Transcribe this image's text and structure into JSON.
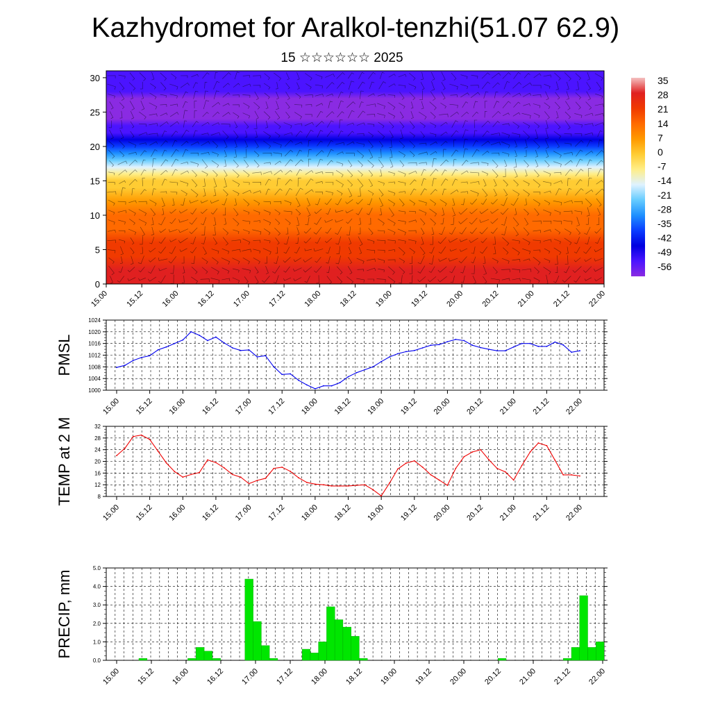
{
  "header": {
    "title": "Kazhydromet for Aralkol-tenzhi(51.07 62.9)",
    "subtitle": "15 ☆☆☆☆☆☆ 2025"
  },
  "colors": {
    "pmsl_line": "#0000ee",
    "temp_line": "#ee0000",
    "precip_bar": "#00e600",
    "precip_bar_edge": "#00a000"
  },
  "chart_data": [
    {
      "type": "heatmap",
      "title": "Kazhydromet for Aralkol-tenzhi(51.07 62.9)",
      "subtitle": "15 ☆☆☆☆☆☆ 2025",
      "x_ticks": [
        "15.00",
        "15.12",
        "16.00",
        "16.12",
        "17.00",
        "17.12",
        "18.00",
        "18.12",
        "19.00",
        "19.12",
        "20.00",
        "20.12",
        "21.00",
        "21.12",
        "22.00"
      ],
      "y_ticks": [
        0,
        5,
        10,
        15,
        20,
        25,
        30
      ],
      "ylim": [
        0,
        31
      ],
      "colorbar_labels": [
        "35",
        "28",
        "21",
        "14",
        "7",
        "0",
        "-7",
        "-14",
        "-21",
        "-28",
        "-35",
        "-42",
        "-49",
        "-56"
      ],
      "colorbar_stops": [
        "#f4c0c0",
        "#e02020",
        "#f03a00",
        "#ff6a00",
        "#ff9900",
        "#ffcc33",
        "#ffee88",
        "#dff2ff",
        "#66ccff",
        "#1e90ff",
        "#0a3dff",
        "#0000e0",
        "#4b14ff",
        "#8a2be2"
      ],
      "overlay": "wind barbs",
      "profile_heights_km": [
        0,
        2,
        4,
        6,
        8,
        10,
        12,
        14,
        15,
        16,
        17,
        18,
        19,
        20,
        21,
        22,
        23,
        24,
        25,
        26,
        27,
        28,
        29,
        30,
        31
      ],
      "profile_temps_c": [
        30,
        28,
        26,
        22,
        18,
        14,
        10,
        5,
        2,
        -4,
        -10,
        -18,
        -24,
        -32,
        -38,
        -44,
        -48,
        -52,
        -55,
        -54,
        -50,
        -47,
        -46,
        -45,
        -44
      ]
    },
    {
      "type": "line",
      "ylabel": "PMSL",
      "y_ticks": [
        1000,
        1004,
        1008,
        1012,
        1016,
        1020,
        1024
      ],
      "ylim": [
        1000,
        1024
      ],
      "x_ticks": [
        "15.00",
        "15.12",
        "16.00",
        "16.12",
        "17.00",
        "17.12",
        "18.00",
        "18.12",
        "19.00",
        "19.12",
        "20.00",
        "20.12",
        "21.00",
        "21.12",
        "22.00"
      ],
      "x_step_hours": 3,
      "series": [
        {
          "values": [
            1007.8,
            1008.5,
            1010.2,
            1011.2,
            1011.8,
            1013.8,
            1014.8,
            1016.0,
            1017.2,
            1020.0,
            1018.8,
            1017.0,
            1018.2,
            1016.2,
            1014.5,
            1013.6,
            1013.8,
            1011.4,
            1011.8,
            1008.0,
            1005.4,
            1005.6,
            1003.4,
            1001.8,
            1000.5,
            1001.5,
            1001.5,
            1002.6,
            1004.6,
            1006.0,
            1007.0,
            1008.0,
            1009.8,
            1011.4,
            1012.5,
            1013.2,
            1013.6,
            1014.5,
            1015.4,
            1015.6,
            1016.6,
            1017.4,
            1017.0,
            1015.4,
            1014.6,
            1014.0,
            1013.5,
            1013.5,
            1014.8,
            1016.0,
            1016.0,
            1015.0,
            1015.0,
            1016.5,
            1015.5,
            1013.0,
            1013.5
          ]
        }
      ]
    },
    {
      "type": "line",
      "ylabel": "TEMP at 2 M",
      "y_ticks": [
        8,
        12,
        16,
        20,
        24,
        28,
        32
      ],
      "ylim": [
        8,
        32
      ],
      "x_ticks": [
        "15.00",
        "15.12",
        "16.00",
        "16.12",
        "17.00",
        "17.12",
        "18.00",
        "18.12",
        "19.00",
        "19.12",
        "20.00",
        "20.12",
        "21.00",
        "21.12",
        "22.00"
      ],
      "x_step_hours": 3,
      "series": [
        {
          "values": [
            22.0,
            24.5,
            28.5,
            29.0,
            27.5,
            23.5,
            19.5,
            16.5,
            14.6,
            15.5,
            16.2,
            20.5,
            19.6,
            17.8,
            15.5,
            14.6,
            12.4,
            13.5,
            14.2,
            17.6,
            18.0,
            16.6,
            14.4,
            12.8,
            12.2,
            12.0,
            11.6,
            11.6,
            11.6,
            11.8,
            12.0,
            10.3,
            8.2,
            12.6,
            17.4,
            19.4,
            20.2,
            18.0,
            15.4,
            13.6,
            11.8,
            17.6,
            21.6,
            23.2,
            24.0,
            20.6,
            17.6,
            16.4,
            13.6,
            18.6,
            23.2,
            26.3,
            25.4,
            20.4,
            15.4,
            15.4,
            15.0
          ]
        }
      ]
    },
    {
      "type": "bar",
      "ylabel": "PRECIP, mm",
      "y_ticks": [
        "0.0",
        "1.0",
        "2.0",
        "3.0",
        "4.0",
        "5.0"
      ],
      "ylim": [
        0,
        5
      ],
      "x_ticks": [
        "15.00",
        "15.12",
        "16.00",
        "16.12",
        "17.00",
        "17.12",
        "18.00",
        "18.12",
        "19.00",
        "19.12",
        "20.00",
        "20.12",
        "21.00",
        "21.12",
        "22.00"
      ],
      "bar_width_hours": 3,
      "values": [
        0,
        0,
        0,
        0,
        0.1,
        0,
        0,
        0,
        0,
        0,
        0.1,
        0.7,
        0.5,
        0.1,
        0,
        0,
        0,
        4.4,
        2.1,
        0.8,
        0.1,
        0,
        0,
        0,
        0.6,
        0.4,
        1.0,
        2.9,
        2.2,
        1.8,
        1.3,
        0.1,
        0,
        0,
        0,
        0,
        0,
        0,
        0,
        0,
        0,
        0,
        0,
        0,
        0,
        0,
        0,
        0,
        0.1,
        0,
        0,
        0,
        0,
        0,
        0,
        0,
        0.1,
        0.7,
        3.5,
        0.7,
        1.0
      ]
    }
  ]
}
